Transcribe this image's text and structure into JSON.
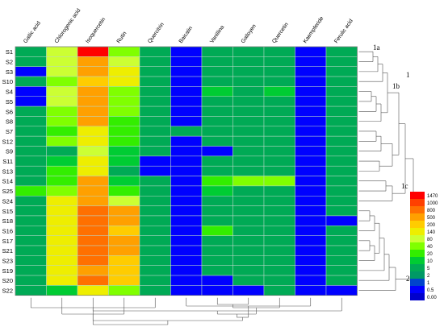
{
  "chart_data": {
    "type": "heatmap",
    "columns": [
      "Gallic acid",
      "Chlorogenic acid",
      "Isoquercetin",
      "Rutin",
      "Quercitrin",
      "Baicalin",
      "Vanillina",
      "Galloyen",
      "Quercetin",
      "Kaempferide",
      "Ferulic acid"
    ],
    "rows": [
      "S1",
      "S2",
      "S3",
      "S10",
      "S4",
      "S5",
      "S6",
      "S8",
      "S7",
      "S12",
      "S9",
      "S11",
      "S13",
      "S14",
      "S25",
      "S24",
      "S15",
      "S18",
      "S16",
      "S17",
      "S21",
      "S23",
      "S19",
      "S20",
      "S22"
    ],
    "legend_scale": [
      1470,
      1000,
      800,
      500,
      200,
      140,
      80,
      40,
      20,
      10,
      5,
      2,
      1,
      0.5,
      0.0
    ],
    "scale_colors": [
      "#ff0000",
      "#ff4000",
      "#ff7000",
      "#ffa000",
      "#ffcc00",
      "#eeee00",
      "#ccff33",
      "#80ff00",
      "#33ee00",
      "#00cc33",
      "#00aa55",
      "#009966",
      "#0044cc",
      "#0000ff",
      "#0000cc"
    ],
    "values": [
      [
        5,
        80,
        1470,
        40,
        5,
        0.5,
        5,
        5,
        5,
        0.5,
        5
      ],
      [
        5,
        80,
        500,
        80,
        5,
        0.5,
        5,
        5,
        5,
        0.5,
        5
      ],
      [
        0.5,
        80,
        500,
        140,
        5,
        0.5,
        5,
        5,
        5,
        0.5,
        5
      ],
      [
        5,
        40,
        200,
        140,
        5,
        0.5,
        5,
        5,
        5,
        0.5,
        5
      ],
      [
        0.5,
        80,
        500,
        40,
        5,
        0.5,
        10,
        5,
        10,
        0.5,
        5
      ],
      [
        0.5,
        80,
        500,
        40,
        5,
        0.5,
        5,
        5,
        5,
        0.5,
        5
      ],
      [
        5,
        40,
        500,
        40,
        5,
        0.5,
        5,
        5,
        5,
        0.5,
        5
      ],
      [
        5,
        40,
        500,
        20,
        5,
        0.5,
        5,
        5,
        5,
        0.5,
        5
      ],
      [
        5,
        20,
        140,
        20,
        5,
        5,
        5,
        5,
        5,
        0.5,
        5
      ],
      [
        5,
        40,
        140,
        20,
        5,
        0.5,
        5,
        5,
        5,
        0.5,
        5
      ],
      [
        5,
        5,
        80,
        10,
        5,
        0.5,
        0.5,
        5,
        5,
        0.5,
        5
      ],
      [
        5,
        10,
        140,
        10,
        0.5,
        0.5,
        5,
        5,
        5,
        0.5,
        5
      ],
      [
        5,
        20,
        140,
        5,
        0.5,
        0.5,
        5,
        5,
        5,
        0.5,
        5
      ],
      [
        5,
        20,
        500,
        10,
        5,
        0.5,
        20,
        40,
        40,
        0.5,
        5
      ],
      [
        20,
        40,
        500,
        20,
        5,
        0.5,
        10,
        5,
        5,
        0.5,
        5
      ],
      [
        5,
        140,
        500,
        80,
        5,
        0.5,
        5,
        5,
        5,
        0.5,
        5
      ],
      [
        5,
        140,
        800,
        500,
        5,
        0.5,
        5,
        5,
        5,
        0.5,
        5
      ],
      [
        5,
        140,
        800,
        500,
        5,
        0.5,
        5,
        5,
        5,
        0.5,
        0.5
      ],
      [
        5,
        140,
        800,
        200,
        5,
        0.5,
        20,
        5,
        5,
        0.5,
        5
      ],
      [
        5,
        140,
        800,
        500,
        5,
        0.5,
        5,
        5,
        5,
        0.5,
        5
      ],
      [
        5,
        140,
        800,
        500,
        5,
        0.5,
        5,
        5,
        5,
        0.5,
        5
      ],
      [
        5,
        140,
        800,
        200,
        5,
        0.5,
        5,
        5,
        5,
        0.5,
        5
      ],
      [
        5,
        140,
        500,
        200,
        5,
        0.5,
        5,
        5,
        5,
        0.5,
        5
      ],
      [
        5,
        140,
        800,
        200,
        5,
        0.5,
        0.5,
        5,
        5,
        0.5,
        5
      ],
      [
        5,
        10,
        140,
        40,
        5,
        0.5,
        0.5,
        0.5,
        5,
        0.5,
        0.5
      ]
    ],
    "row_cluster_labels": [
      "1a",
      "1",
      "1b",
      "1c",
      "2"
    ]
  }
}
